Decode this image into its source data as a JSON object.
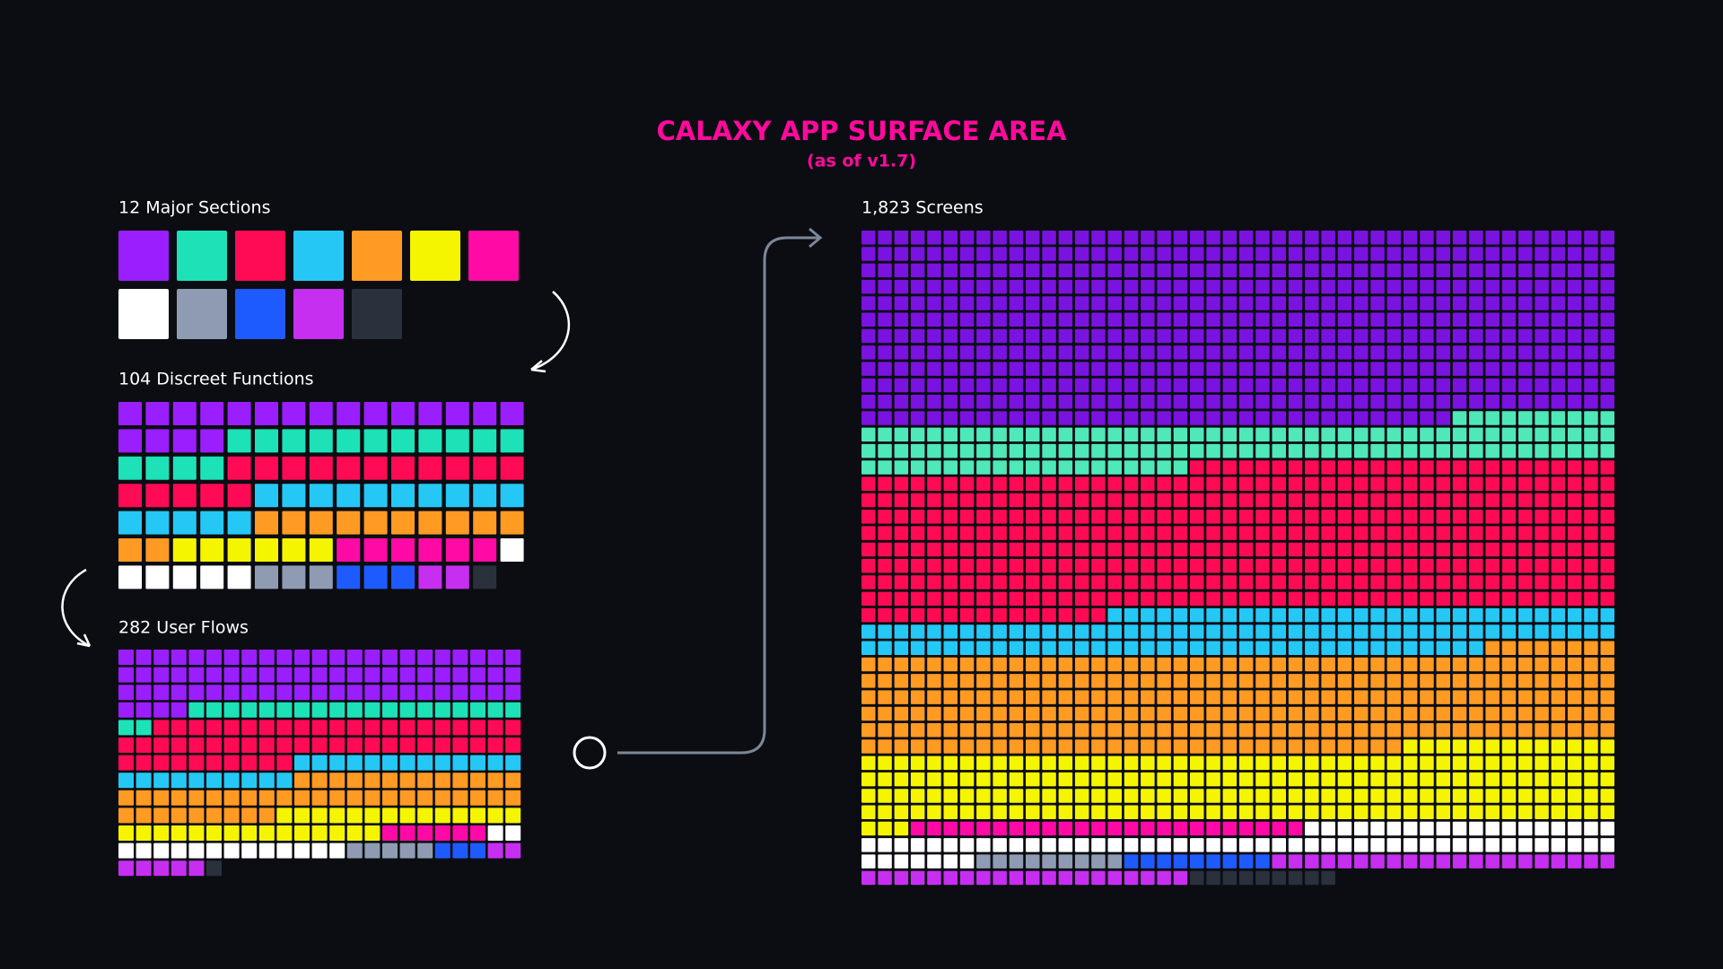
{
  "title": "CALAXY APP SURFACE AREA",
  "subtitle": "(as of v1.7)",
  "chart_data": [
    {
      "type": "waffle",
      "title": "12 Major Sections",
      "values": [
        1,
        1,
        1,
        1,
        1,
        1,
        1,
        1,
        1,
        1,
        1,
        1
      ],
      "colors": [
        "#9b1eff",
        "#1de2b8",
        "#ff0a54",
        "#25c8f5",
        "#ff9a22",
        "#f5f500",
        "#ff0aa5",
        "#ffffff",
        "#8f9bb3",
        "#1e5bff",
        "#c62ef0",
        "#2a313d"
      ]
    },
    {
      "type": "waffle",
      "title": "104 Discreet Functions",
      "values": [
        19,
        15,
        16,
        15,
        12,
        6,
        6,
        6,
        3,
        3,
        2,
        1
      ],
      "colors": [
        "#9b1eff",
        "#1de2b8",
        "#ff0a54",
        "#25c8f5",
        "#ff9a22",
        "#f5f500",
        "#ff0aa5",
        "#ffffff",
        "#8f9bb3",
        "#1e5bff",
        "#c62ef0",
        "#2a313d"
      ]
    },
    {
      "type": "waffle",
      "title": "282 User Flows",
      "values": [
        73,
        21,
        54,
        23,
        45,
        29,
        6,
        15,
        5,
        3,
        7,
        1
      ],
      "colors": [
        "#9b1eff",
        "#1de2b8",
        "#ff0a54",
        "#25c8f5",
        "#ff9a22",
        "#f5f500",
        "#ff0aa5",
        "#ffffff",
        "#8f9bb3",
        "#1e5bff",
        "#c62ef0",
        "#2a313d"
      ]
    },
    {
      "type": "waffle",
      "title": "1,823 Screens",
      "values": [
        542,
        122,
        409,
        115,
        271,
        200,
        24,
        72,
        9,
        9,
        41,
        9
      ],
      "colors": [
        "#7a12e0",
        "#4fe8b8",
        "#ff0a54",
        "#25c8f5",
        "#ff9a22",
        "#f5f500",
        "#ff0aa5",
        "#ffffff",
        "#8f9bb3",
        "#1e5bff",
        "#c62ef0",
        "#2a313d"
      ]
    }
  ]
}
